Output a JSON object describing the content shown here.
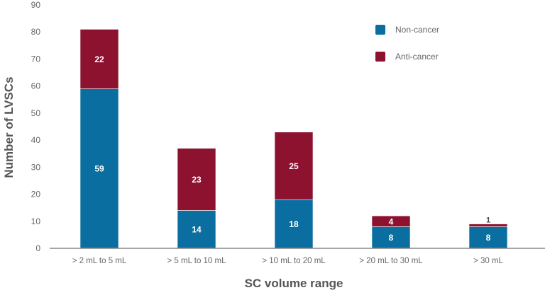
{
  "chart_data": {
    "type": "bar",
    "stacked": true,
    "title": "",
    "xlabel": "SC volume range",
    "ylabel": "Number of LVSCs",
    "ylim": [
      0,
      90
    ],
    "yticks": [
      0,
      10,
      20,
      30,
      40,
      50,
      60,
      70,
      80,
      90
    ],
    "categories": [
      "> 2 mL to 5 mL",
      "> 5 mL to 10 mL",
      "> 10 mL to 20 mL",
      "> 20 mL to 30 mL",
      "> 30 mL"
    ],
    "series": [
      {
        "name": "Non-cancer",
        "color": "#0a6fa0",
        "values": [
          59,
          14,
          18,
          8,
          8
        ]
      },
      {
        "name": "Anti-cancer",
        "color": "#8c1230",
        "values": [
          22,
          23,
          25,
          4,
          1
        ]
      }
    ],
    "grid": false,
    "legend_position": "top-right"
  }
}
